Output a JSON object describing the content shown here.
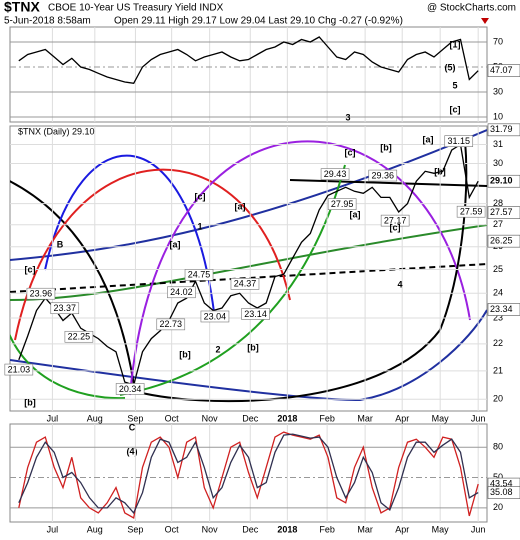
{
  "header": {
    "symbol": "$TNX",
    "name": "CBOE 10-Year US Treasury Yield INDX",
    "brand": "@ StockCharts.com",
    "date": "5-Jun-2018 8:58am",
    "quote": "Open 29.11 High 29.17 Low 29.04 Last 29.10 Chg -0.27 (-0.92%)"
  },
  "chart_data": [
    {
      "type": "line",
      "panel": "rsi",
      "x": [
        1,
        2,
        3,
        4,
        5,
        6,
        7,
        8,
        9,
        10,
        11,
        12,
        13,
        14,
        15,
        16,
        17,
        18,
        19,
        20,
        21,
        22,
        23,
        24,
        25,
        26,
        27,
        28,
        29,
        30,
        31,
        32,
        33,
        34,
        35,
        36,
        37,
        38,
        39,
        40,
        41,
        42,
        43,
        44,
        45,
        46,
        47,
        48,
        49,
        50,
        51,
        52,
        53
      ],
      "xlim": [
        0,
        54
      ],
      "ylim": [
        6,
        82
      ],
      "yticks": [
        10,
        30,
        50,
        70
      ],
      "color": "#000000",
      "values": [
        55,
        60,
        62,
        64,
        58,
        52,
        57,
        50,
        48,
        45,
        42,
        40,
        38,
        37,
        50,
        56,
        60,
        62,
        64,
        60,
        55,
        58,
        60,
        62,
        58,
        55,
        56,
        60,
        64,
        66,
        70,
        68,
        72,
        70,
        74,
        66,
        58,
        56,
        62,
        60,
        54,
        50,
        48,
        46,
        56,
        60,
        62,
        58,
        64,
        70,
        72,
        40,
        47.07
      ],
      "tags": [
        {
          "value": 47.07,
          "label": "47.07"
        }
      ]
    },
    {
      "type": "line",
      "panel": "price",
      "legend": "$TNX (Daily) 29.10",
      "log_scale": true,
      "grid": true,
      "color": "#000000",
      "x": [
        1,
        2,
        3,
        4,
        5,
        6,
        7,
        8,
        9,
        10,
        11,
        12,
        13,
        14,
        15,
        16,
        17,
        18,
        19,
        20,
        21,
        22,
        23,
        24,
        25,
        26,
        27,
        28,
        29,
        30,
        31,
        32,
        33,
        34,
        35,
        36,
        37,
        38,
        39,
        40,
        41,
        42,
        43,
        44,
        45,
        46,
        47,
        48,
        49,
        50,
        51,
        52,
        53
      ],
      "xlim": [
        0,
        54
      ],
      "ylim": [
        19.6,
        32
      ],
      "xticks": [
        {
          "value": 4.8,
          "label": "Jul"
        },
        {
          "value": 9.6,
          "label": "Aug"
        },
        {
          "value": 14.2,
          "label": "Sep"
        },
        {
          "value": 18.3,
          "label": "Oct"
        },
        {
          "value": 22.6,
          "label": "Nov"
        },
        {
          "value": 27.2,
          "label": "Dec"
        },
        {
          "value": 31.4,
          "label": "2018"
        },
        {
          "value": 35.9,
          "label": "Feb"
        },
        {
          "value": 40.2,
          "label": "Mar"
        },
        {
          "value": 44.4,
          "label": "Apr"
        },
        {
          "value": 48.7,
          "label": "May"
        },
        {
          "value": 53,
          "label": "Jun"
        }
      ],
      "yticks": [
        20,
        21,
        22,
        23,
        24,
        25,
        26,
        27,
        28,
        30,
        31
      ],
      "values": [
        21.4,
        22.3,
        23.3,
        23.8,
        23.4,
        22.9,
        23.2,
        22.6,
        22.4,
        22.2,
        21.9,
        21.7,
        20.6,
        20.5,
        21.7,
        22.2,
        22.5,
        22.9,
        23.6,
        23.8,
        24.5,
        23.6,
        23.3,
        23.4,
        23.9,
        24.0,
        23.6,
        23.4,
        23.6,
        24.7,
        24.8,
        25.5,
        26.2,
        26.6,
        27.7,
        28.4,
        28.6,
        28.8,
        28.6,
        28.5,
        28.8,
        28.3,
        28.3,
        27.6,
        28.0,
        29.1,
        29.6,
        29.5,
        29.6,
        30.7,
        31.0,
        28.3,
        29.1
      ],
      "tags": [
        {
          "value": 31.79,
          "label": "31.79"
        },
        {
          "value": 29.1,
          "label": "29.10"
        },
        {
          "value": 27.57,
          "label": "27.57"
        },
        {
          "value": 26.25,
          "label": "26.25"
        },
        {
          "value": 23.34,
          "label": "23.34"
        }
      ],
      "price_labels": [
        {
          "x": 1,
          "value": 21.03
        },
        {
          "x": 3.5,
          "value": 23.96
        },
        {
          "x": 6.2,
          "value": 23.37
        },
        {
          "x": 7.8,
          "value": 22.25
        },
        {
          "x": 13.6,
          "value": 20.34
        },
        {
          "x": 18.2,
          "value": 22.73
        },
        {
          "x": 19.4,
          "value": 24.02
        },
        {
          "x": 21.4,
          "value": 24.75
        },
        {
          "x": 23.2,
          "value": 23.04
        },
        {
          "x": 26.6,
          "value": 24.37
        },
        {
          "x": 27.8,
          "value": 23.14
        },
        {
          "x": 36.8,
          "value": 29.43
        },
        {
          "x": 37.6,
          "value": 27.95
        },
        {
          "x": 42.2,
          "value": 29.36
        },
        {
          "x": 43.6,
          "value": 27.17
        },
        {
          "x": 50.8,
          "value": 31.15
        },
        {
          "x": 52.2,
          "value": 27.59
        }
      ],
      "wave_labels": [
        {
          "text": "[1]",
          "color": "#1010c0"
        },
        {
          "text": "(5)",
          "color": "#000000"
        },
        {
          "text": "5",
          "color": "#8a1cc8"
        },
        {
          "text": "[c]",
          "color": "#a00000"
        },
        {
          "text": "3",
          "color": "#8a1cc8"
        },
        {
          "text": "[c]",
          "color": "#a00000"
        },
        {
          "text": "[b]",
          "color": "#a00000"
        },
        {
          "text": "[a]",
          "color": "#a00000"
        },
        {
          "text": "[b]",
          "color": "#a00000"
        },
        {
          "text": "[a]",
          "color": "#a00000"
        },
        {
          "text": "[c]",
          "color": "#a00000"
        },
        {
          "text": "4",
          "color": "#8a1cc8"
        },
        {
          "text": "1",
          "color": "#8a1cc8"
        },
        {
          "text": "[c]",
          "color": "#a00000"
        },
        {
          "text": "[a]",
          "color": "#a00000"
        },
        {
          "text": "[a]",
          "color": "#a00000"
        },
        {
          "text": "B",
          "color": "#8a1cc8"
        },
        {
          "text": "[c]",
          "color": "#a00000"
        },
        {
          "text": "2",
          "color": "#8a1cc8"
        },
        {
          "text": "[b]",
          "color": "#a00000"
        },
        {
          "text": "[b]",
          "color": "#a00000"
        },
        {
          "text": "[b]",
          "color": "#a00000"
        },
        {
          "text": "C",
          "color": "#8a1cc8"
        },
        {
          "text": "(4)",
          "color": "#000000"
        }
      ]
    },
    {
      "type": "line",
      "panel": "stoch",
      "x": [
        1,
        2,
        3,
        4,
        5,
        6,
        7,
        8,
        9,
        10,
        11,
        12,
        13,
        14,
        15,
        16,
        17,
        18,
        19,
        20,
        21,
        22,
        23,
        24,
        25,
        26,
        27,
        28,
        29,
        30,
        31,
        32,
        33,
        34,
        35,
        36,
        37,
        38,
        39,
        40,
        41,
        42,
        43,
        44,
        45,
        46,
        47,
        48,
        49,
        50,
        51,
        52,
        53
      ],
      "xlim": [
        0,
        54
      ],
      "ylim": [
        6,
        103
      ],
      "yticks": [
        20,
        50,
        80
      ],
      "xticks": [
        {
          "value": 4.8,
          "label": "Jul"
        },
        {
          "value": 9.6,
          "label": "Aug"
        },
        {
          "value": 14.2,
          "label": "Sep"
        },
        {
          "value": 18.3,
          "label": "Oct"
        },
        {
          "value": 22.6,
          "label": "Nov"
        },
        {
          "value": 27.2,
          "label": "Dec"
        },
        {
          "value": 31.4,
          "label": "2018"
        },
        {
          "value": 35.9,
          "label": "Feb"
        },
        {
          "value": 40.2,
          "label": "Mar"
        },
        {
          "value": 44.4,
          "label": "Apr"
        },
        {
          "value": 48.7,
          "label": "May"
        },
        {
          "value": 53,
          "label": "Jun"
        }
      ],
      "series": [
        {
          "color": "#d02020",
          "values": [
            20,
            60,
            85,
            90,
            60,
            40,
            70,
            30,
            20,
            15,
            25,
            40,
            15,
            10,
            60,
            85,
            90,
            80,
            50,
            85,
            90,
            40,
            20,
            50,
            80,
            85,
            55,
            30,
            60,
            90,
            95,
            92,
            90,
            88,
            92,
            70,
            30,
            25,
            60,
            80,
            40,
            15,
            20,
            60,
            85,
            88,
            80,
            70,
            90,
            88,
            60,
            12,
            43.54
          ]
        },
        {
          "color": "#303050",
          "values": [
            25,
            45,
            70,
            85,
            75,
            50,
            55,
            45,
            30,
            20,
            20,
            30,
            25,
            15,
            35,
            70,
            88,
            85,
            65,
            70,
            85,
            60,
            30,
            40,
            65,
            82,
            70,
            40,
            45,
            75,
            92,
            93,
            91,
            89,
            90,
            80,
            50,
            30,
            45,
            70,
            55,
            25,
            18,
            40,
            70,
            85,
            85,
            75,
            82,
            88,
            75,
            30,
            35.08
          ]
        }
      ],
      "tags": [
        {
          "value": 43.54,
          "label": "43.54"
        },
        {
          "value": 35.08,
          "label": "35.08"
        }
      ]
    }
  ]
}
